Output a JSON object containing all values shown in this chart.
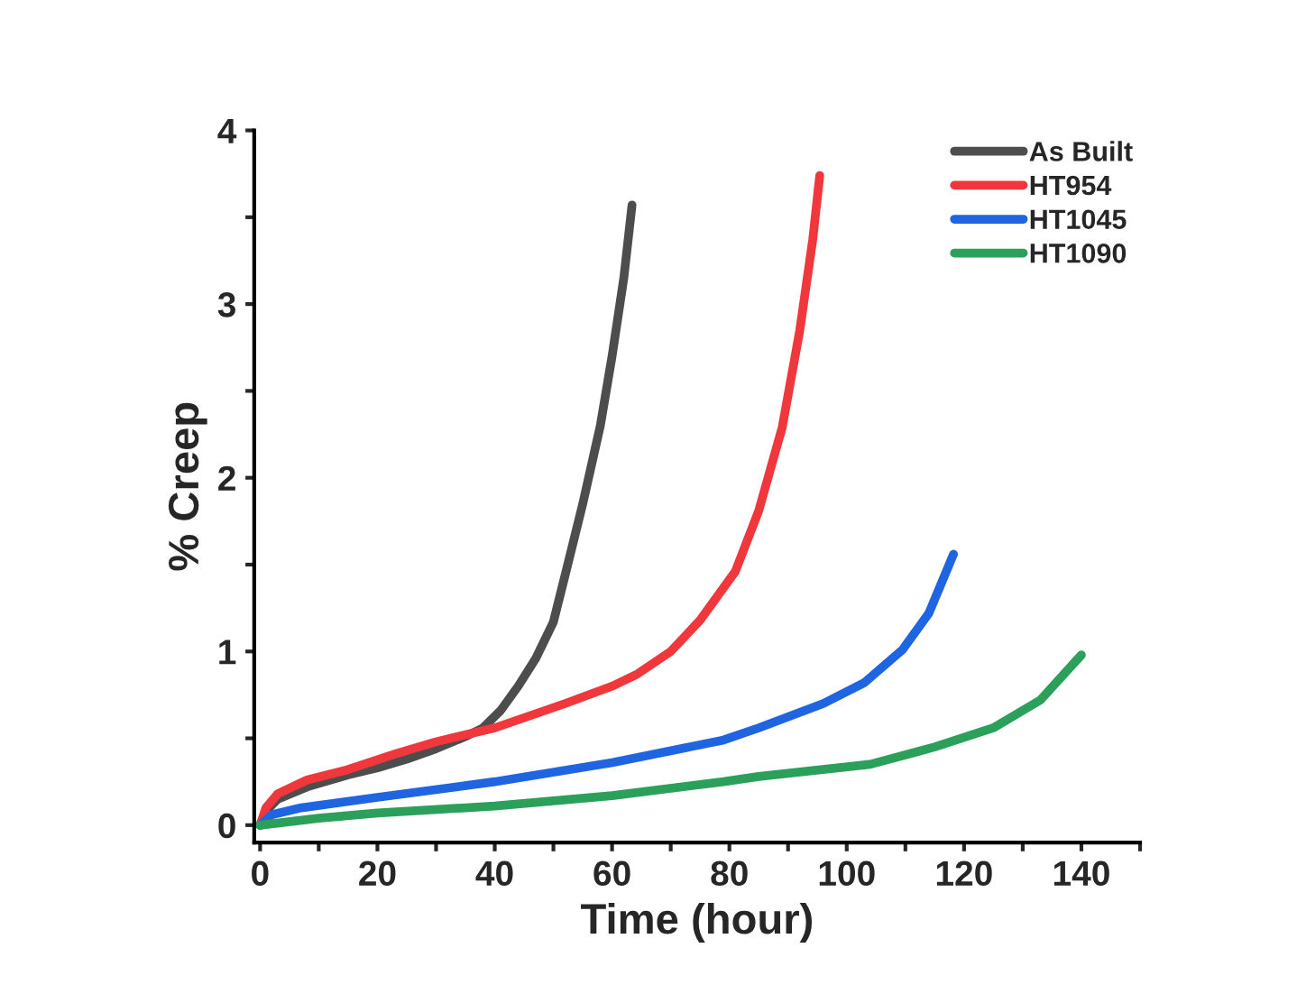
{
  "chart_data": {
    "type": "line",
    "xlabel": "Time (hour)",
    "ylabel": "% Creep",
    "xlim": [
      -1,
      150
    ],
    "ylim": [
      -0.1,
      4
    ],
    "xticks": [
      0,
      {
        "value": 10,
        "label": null
      },
      20,
      {
        "value": 30,
        "label": null
      },
      40,
      {
        "value": 50,
        "label": null
      },
      60,
      {
        "value": 70,
        "label": null
      },
      80,
      {
        "value": 90,
        "label": null
      },
      100,
      {
        "value": 110,
        "label": null
      },
      120,
      {
        "value": 130,
        "label": null
      },
      140,
      {
        "value": 150,
        "label": null
      }
    ],
    "yticks": [
      0,
      {
        "value": 0.5,
        "label": null
      },
      1,
      {
        "value": 1.5,
        "label": null
      },
      2,
      {
        "value": 2.5,
        "label": null
      },
      3,
      {
        "value": 3.5,
        "label": null
      },
      4
    ],
    "grid": false,
    "legend": "top right",
    "marker": "none",
    "line_style": "solid",
    "series": [
      {
        "name": "As Built",
        "color": "#4d4d4d",
        "x": [
          0,
          1,
          3,
          8,
          15,
          20,
          25,
          30,
          35,
          38,
          41,
          44,
          47,
          50,
          52,
          55,
          58,
          60,
          62,
          63.4
        ],
        "values": [
          0,
          0.08,
          0.15,
          0.22,
          0.29,
          0.33,
          0.38,
          0.44,
          0.51,
          0.56,
          0.66,
          0.8,
          0.96,
          1.17,
          1.44,
          1.85,
          2.3,
          2.7,
          3.15,
          3.57
        ]
      },
      {
        "name": "HT954",
        "color": "#f0383c",
        "x": [
          0,
          1,
          3,
          8,
          15,
          23,
          30,
          40,
          52,
          60,
          64.3,
          70,
          75,
          81,
          85,
          89,
          92,
          94.2,
          95.4
        ],
        "values": [
          0,
          0.1,
          0.18,
          0.26,
          0.32,
          0.41,
          0.48,
          0.56,
          0.7,
          0.8,
          0.87,
          1.0,
          1.18,
          1.46,
          1.81,
          2.29,
          2.85,
          3.37,
          3.74
        ]
      },
      {
        "name": "HT1045",
        "color": "#1f64e0",
        "x": [
          0,
          2,
          7,
          20,
          40,
          60,
          79,
          85,
          96,
          103,
          109.5,
          114,
          118.2
        ],
        "values": [
          0,
          0.06,
          0.1,
          0.16,
          0.25,
          0.36,
          0.49,
          0.56,
          0.7,
          0.82,
          1.01,
          1.22,
          1.56
        ]
      },
      {
        "name": "HT1090",
        "color": "#2aa05a",
        "x": [
          0,
          10,
          20,
          40,
          60,
          79,
          85,
          104,
          115,
          125,
          133,
          140
        ],
        "values": [
          0,
          0.04,
          0.07,
          0.11,
          0.17,
          0.25,
          0.28,
          0.35,
          0.45,
          0.56,
          0.72,
          0.98
        ]
      }
    ]
  }
}
